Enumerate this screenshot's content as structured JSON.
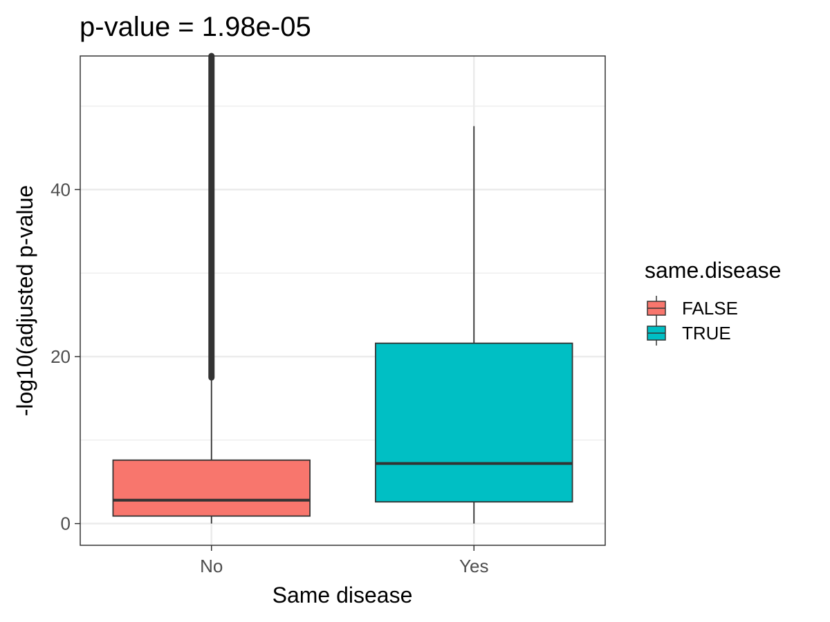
{
  "chart_data": {
    "type": "boxplot",
    "title": "p-value = 1.98e-05",
    "xlabel": "Same disease",
    "ylabel": "-log10(adjusted p-value",
    "categories": [
      "No",
      "Yes"
    ],
    "ylim": [
      -2.6,
      56
    ],
    "yticks": [
      0,
      20,
      40
    ],
    "ytick_labels": [
      "0",
      "20",
      "40"
    ],
    "y_minor_ticks": [
      10,
      30,
      50
    ],
    "grid": true,
    "legend": {
      "title": "same.disease",
      "position": "right",
      "entries": [
        {
          "label": "FALSE",
          "color": "#F8766D"
        },
        {
          "label": "TRUE",
          "color": "#00BFC4"
        }
      ]
    },
    "series": [
      {
        "category": "No",
        "group": "FALSE",
        "color": "#F8766D",
        "whisker_low": 0.0,
        "q1": 0.9,
        "median": 2.8,
        "q3": 7.6,
        "whisker_high": 17.5,
        "outlier_range": [
          17.5,
          56
        ]
      },
      {
        "category": "Yes",
        "group": "TRUE",
        "color": "#00BFC4",
        "whisker_low": 0.0,
        "q1": 2.6,
        "median": 7.2,
        "q3": 21.6,
        "whisker_high": 47.6,
        "outlier_range": null
      }
    ]
  }
}
